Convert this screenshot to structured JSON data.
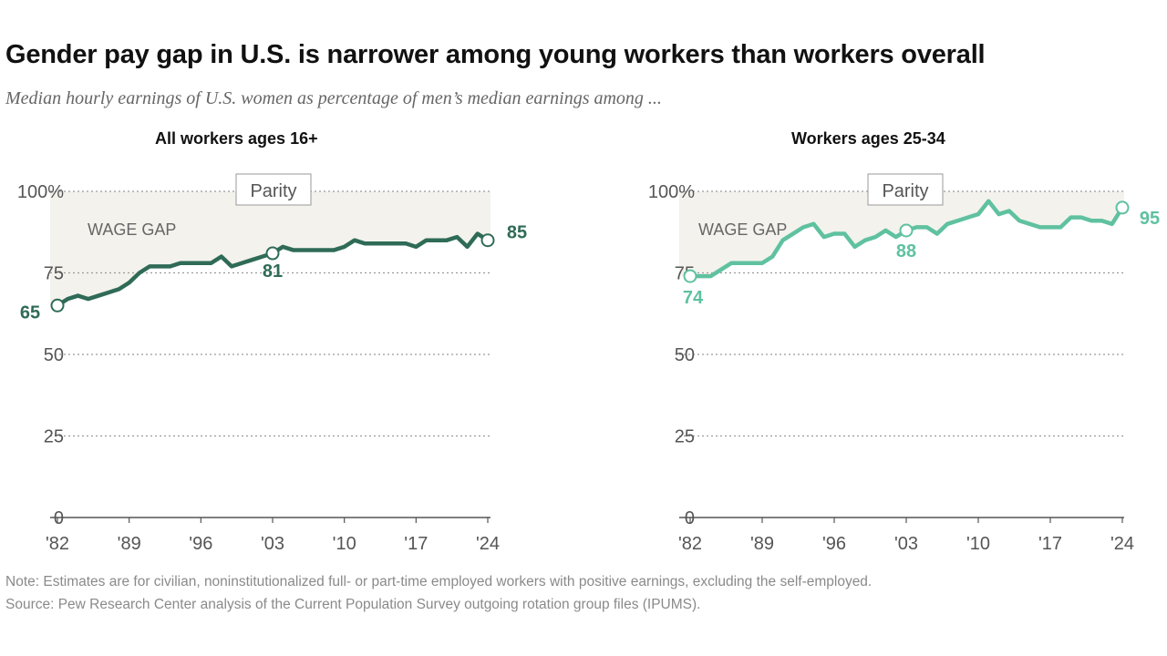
{
  "header": {
    "title": "Gender pay gap in U.S. is narrower among young workers than workers overall",
    "subtitle": "Median hourly earnings of U.S. women as percentage of men’s median earnings among ..."
  },
  "notes": {
    "note": "Note: Estimates are for civilian, noninstitutionalized full- or part-time employed workers with positive earnings, excluding the self-employed.",
    "source": "Source: Pew Research Center analysis of the Current Population Survey outgoing rotation group files (IPUMS)."
  },
  "colors": {
    "all_workers": "#2f6b57",
    "young_workers": "#5fc1a0",
    "gap_fill": "#f3f2ec",
    "axis_text": "#555555",
    "grid": "#9a9a9a"
  },
  "chart_data": [
    {
      "type": "line",
      "title": "All workers ages 16+",
      "x_ticks": [
        "'82",
        "'89",
        "'96",
        "'03",
        "'10",
        "'17",
        "'24"
      ],
      "y_ticks": [
        "100%",
        "75",
        "50",
        "25",
        "0"
      ],
      "ylim": [
        0,
        100
      ],
      "xlim": [
        1982,
        2024
      ],
      "grid": true,
      "parity_label": "Parity",
      "gap_label": "WAGE GAP",
      "series": [
        {
          "x": [
            1982,
            1983,
            1984,
            1985,
            1986,
            1987,
            1988,
            1989,
            1990,
            1991,
            1992,
            1993,
            1994,
            1995,
            1996,
            1997,
            1998,
            1999,
            2000,
            2001,
            2002,
            2003,
            2004,
            2005,
            2006,
            2007,
            2008,
            2009,
            2010,
            2011,
            2012,
            2013,
            2014,
            2015,
            2016,
            2017,
            2018,
            2019,
            2020,
            2021,
            2022,
            2023,
            2024
          ],
          "y": [
            65,
            67,
            68,
            67,
            68,
            69,
            70,
            72,
            75,
            77,
            77,
            77,
            78,
            78,
            78,
            78,
            80,
            77,
            78,
            79,
            80,
            81,
            83,
            82,
            82,
            82,
            82,
            82,
            83,
            85,
            84,
            84,
            84,
            84,
            84,
            83,
            85,
            85,
            85,
            86,
            83,
            87,
            85
          ]
        }
      ],
      "annotations": [
        {
          "x": 1982,
          "y": 65,
          "label": "65"
        },
        {
          "x": 2003,
          "y": 81,
          "label": "81"
        },
        {
          "x": 2024,
          "y": 85,
          "label": "85"
        }
      ]
    },
    {
      "type": "line",
      "title": "Workers ages 25-34",
      "x_ticks": [
        "'82",
        "'89",
        "'96",
        "'03",
        "'10",
        "'17",
        "'24"
      ],
      "y_ticks": [
        "100%",
        "75",
        "50",
        "25",
        "0"
      ],
      "ylim": [
        0,
        100
      ],
      "xlim": [
        1982,
        2024
      ],
      "grid": true,
      "parity_label": "Parity",
      "gap_label": "WAGE GAP",
      "series": [
        {
          "x": [
            1982,
            1983,
            1984,
            1985,
            1986,
            1987,
            1988,
            1989,
            1990,
            1991,
            1992,
            1993,
            1994,
            1995,
            1996,
            1997,
            1998,
            1999,
            2000,
            2001,
            2002,
            2003,
            2004,
            2005,
            2006,
            2007,
            2008,
            2009,
            2010,
            2011,
            2012,
            2013,
            2014,
            2015,
            2016,
            2017,
            2018,
            2019,
            2020,
            2021,
            2022,
            2023,
            2024
          ],
          "y": [
            74,
            74,
            74,
            76,
            78,
            78,
            78,
            78,
            80,
            85,
            87,
            89,
            90,
            86,
            87,
            87,
            83,
            85,
            86,
            88,
            86,
            88,
            89,
            89,
            87,
            90,
            91,
            92,
            93,
            97,
            93,
            94,
            91,
            90,
            89,
            89,
            89,
            92,
            92,
            91,
            91,
            90,
            95
          ]
        }
      ],
      "annotations": [
        {
          "x": 1982,
          "y": 74,
          "label": "74"
        },
        {
          "x": 2003,
          "y": 88,
          "label": "88"
        },
        {
          "x": 2024,
          "y": 95,
          "label": "95"
        }
      ]
    }
  ]
}
